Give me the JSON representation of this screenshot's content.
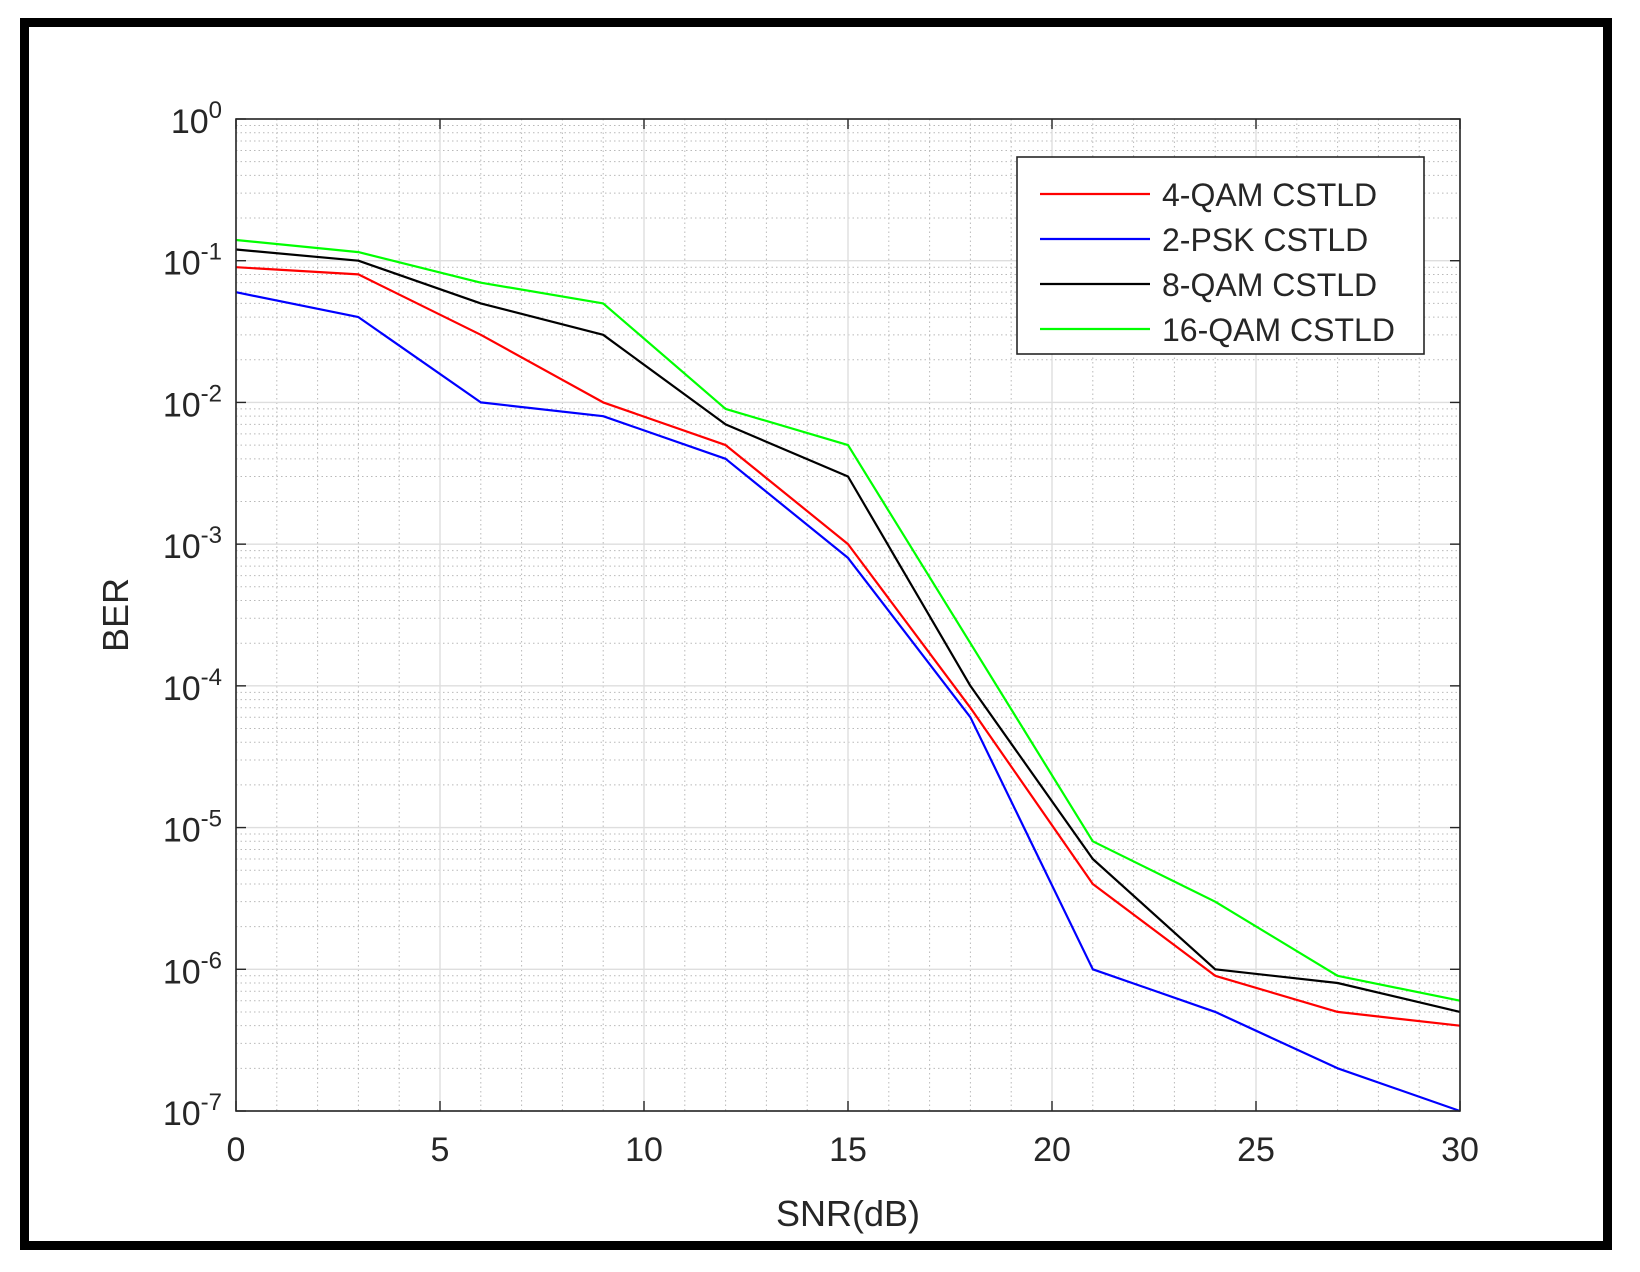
{
  "chart_data": {
    "type": "line",
    "title": "",
    "xlabel": "SNR(dB)",
    "ylabel": "BER",
    "xlim": [
      0,
      30
    ],
    "ylim": [
      1e-07,
      1
    ],
    "yscale": "log",
    "grid": true,
    "minor_grid": true,
    "legend_position": "top-right",
    "x_ticks": [
      {
        "value": 0,
        "label": "0"
      },
      {
        "value": 5,
        "label": "5"
      },
      {
        "value": 10,
        "label": "10"
      },
      {
        "value": 15,
        "label": "15"
      },
      {
        "value": 20,
        "label": "20"
      },
      {
        "value": 25,
        "label": "25"
      },
      {
        "value": 30,
        "label": "30"
      }
    ],
    "y_ticks": [
      {
        "exp": 0,
        "base": "10",
        "sup": "0"
      },
      {
        "exp": -1,
        "base": "10",
        "sup": "-1"
      },
      {
        "exp": -2,
        "base": "10",
        "sup": "-2"
      },
      {
        "exp": -3,
        "base": "10",
        "sup": "-3"
      },
      {
        "exp": -4,
        "base": "10",
        "sup": "-4"
      },
      {
        "exp": -5,
        "base": "10",
        "sup": "-5"
      },
      {
        "exp": -6,
        "base": "10",
        "sup": "-6"
      },
      {
        "exp": -7,
        "base": "10",
        "sup": "-7"
      }
    ],
    "x": [
      0,
      3,
      6,
      9,
      12,
      15,
      18,
      21,
      24,
      27,
      30
    ],
    "series": [
      {
        "name": "4-QAM CSTLD",
        "color": "#ff0000",
        "values": [
          0.09,
          0.08,
          0.03,
          0.01,
          0.005,
          0.001,
          7e-05,
          4e-06,
          9e-07,
          5e-07,
          4e-07
        ]
      },
      {
        "name": "2-PSK CSTLD",
        "color": "#0000ff",
        "values": [
          0.06,
          0.04,
          0.01,
          0.008,
          0.004,
          0.0008,
          6e-05,
          1e-06,
          5e-07,
          2e-07,
          1e-07
        ]
      },
      {
        "name": "8-QAM CSTLD",
        "color": "#000000",
        "values": [
          0.12,
          0.1,
          0.05,
          0.03,
          0.007,
          0.003,
          0.0001,
          6e-06,
          1e-06,
          8e-07,
          5e-07
        ]
      },
      {
        "name": "16-QAM CSTLD",
        "color": "#00ff00",
        "values": [
          0.14,
          0.115,
          0.07,
          0.05,
          0.009,
          0.005,
          0.0002,
          8e-06,
          3e-06,
          9e-07,
          6e-07
        ]
      }
    ]
  }
}
